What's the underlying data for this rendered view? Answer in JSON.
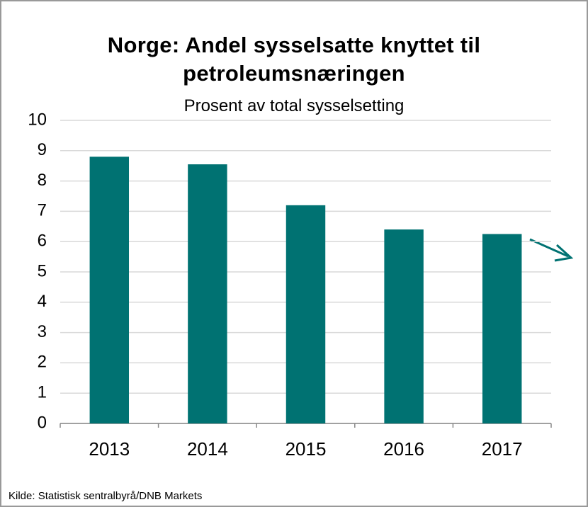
{
  "chart_data": {
    "type": "bar",
    "title": "Norge: Andel sysselsatte knyttet til petroleumsnæringen",
    "subtitle": "Prosent av total sysselsetting",
    "source": "Kilde: Statistisk sentralbyrå/DNB Markets",
    "categories": [
      "2013",
      "2014",
      "2015",
      "2016",
      "2017"
    ],
    "values": [
      8.8,
      8.55,
      7.2,
      6.4,
      6.25
    ],
    "color": "#007272",
    "ylim": [
      0,
      10
    ],
    "yticks": [
      0,
      1,
      2,
      3,
      4,
      5,
      6,
      7,
      8,
      9,
      10
    ],
    "grid": true
  }
}
